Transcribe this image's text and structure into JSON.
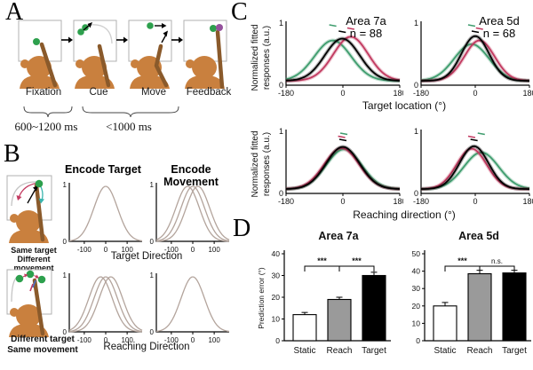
{
  "panels": {
    "A": {
      "label": "A",
      "stages": [
        "Fixation",
        "Cue",
        "Move",
        "Feedback"
      ],
      "timings": [
        "600~1200 ms",
        "<1000 ms"
      ]
    },
    "B": {
      "label": "B",
      "conditions": [
        {
          "lines": [
            "Same target",
            "Different",
            "movement"
          ]
        },
        {
          "lines": [
            "Different target",
            "Same movement"
          ]
        }
      ]
    },
    "C": {
      "label": "C"
    },
    "D": {
      "label": "D"
    }
  },
  "colors": {
    "monkey_body": "#c9803e",
    "monkey_arm": "#8a5a2b",
    "target_green": "#2da04d",
    "feedback_purple": "#94519c",
    "curve_green": "#3f9d6e",
    "curve_red": "#c23a60",
    "curve_black": "#000000",
    "bar_white": "#ffffff",
    "bar_gray": "#9a9a9a",
    "bar_black": "#000000"
  },
  "chart_data": [
    {
      "id": "panelB_encoding_models",
      "type": "line",
      "col_titles": [
        "Encode Target",
        "Encode Movement"
      ],
      "xlabels": [
        "Target Direction",
        "Reaching Direction"
      ],
      "x": {
        "min": -170,
        "max": 170,
        "ticks": [
          -100,
          0,
          100
        ]
      },
      "y": {
        "ticks": [
          0,
          1
        ]
      },
      "tick_font": 8,
      "curve_color": "#b3a49c",
      "halo": false,
      "peak_markers": false,
      "baseline": 0,
      "subplots": [
        {
          "slot": "b-plot-0",
          "row_xlabel": "Target Direction",
          "col": "Encode Target",
          "curves": [
            {
              "mu": 0,
              "peak": 0.97,
              "sigma": 55
            }
          ]
        },
        {
          "slot": "b-plot-1",
          "row_xlabel": "Target Direction",
          "col": "Encode Movement",
          "curves": [
            {
              "mu": -24,
              "peak": 0.97,
              "sigma": 55
            },
            {
              "mu": 0,
              "peak": 0.97,
              "sigma": 55
            },
            {
              "mu": 24,
              "peak": 0.97,
              "sigma": 55
            }
          ]
        },
        {
          "slot": "b-plot-2",
          "row_xlabel": "Reaching Direction",
          "col": "Encode Target",
          "curves": [
            {
              "mu": -24,
              "peak": 0.97,
              "sigma": 55
            },
            {
              "mu": 0,
              "peak": 0.97,
              "sigma": 55
            },
            {
              "mu": 24,
              "peak": 0.97,
              "sigma": 55
            }
          ]
        },
        {
          "slot": "b-plot-3",
          "row_xlabel": "Reaching Direction",
          "col": "Encode Movement",
          "curves": [
            {
              "mu": 0,
              "peak": 0.97,
              "sigma": 55
            }
          ]
        }
      ]
    },
    {
      "id": "panelC_population_tuning",
      "type": "line",
      "ylabel": "Normalized fitted responses (a.u.)",
      "ylabel_lines": [
        "Normalized fitted",
        "responses (a.u.)"
      ],
      "xlabels": [
        "Target location (°)",
        "Reaching direction (°)"
      ],
      "x": {
        "min": -180,
        "max": 180,
        "ticks": [
          -180,
          0,
          180
        ]
      },
      "y": {
        "ticks": [
          0,
          1
        ]
      },
      "tick_font": 9,
      "halo": true,
      "peak_markers": true,
      "baseline": 0.07,
      "subplots": [
        {
          "slot": "c-plot-0",
          "area_title": "Area 7a",
          "n_label": "n = 88",
          "row_xlabel": "Target location (°)",
          "curves": [
            {
              "name": "green",
              "color": "#3f9d6e",
              "mu": -32,
              "peak": 0.72,
              "sigma": 58
            },
            {
              "name": "red",
              "color": "#c23a60",
              "mu": 25,
              "peak": 0.78,
              "sigma": 55
            },
            {
              "name": "black",
              "color": "#000000",
              "mu": -2,
              "peak": 0.75,
              "sigma": 55
            }
          ]
        },
        {
          "slot": "c-plot-1",
          "area_title": "Area 5d",
          "n_label": "n = 68",
          "row_xlabel": "Target location (°)",
          "curves": [
            {
              "name": "green",
              "color": "#3f9d6e",
              "mu": -12,
              "peak": 0.66,
              "sigma": 58
            },
            {
              "name": "red",
              "color": "#c23a60",
              "mu": 14,
              "peak": 0.72,
              "sigma": 50
            },
            {
              "name": "black",
              "color": "#000000",
              "mu": 0,
              "peak": 0.79,
              "sigma": 46
            }
          ]
        },
        {
          "slot": "c-plot-2",
          "row_xlabel": "Reaching direction (°)",
          "curves": [
            {
              "name": "green",
              "color": "#3f9d6e",
              "mu": 3,
              "peak": 0.71,
              "sigma": 56
            },
            {
              "name": "red",
              "color": "#c23a60",
              "mu": -4,
              "peak": 0.73,
              "sigma": 55
            },
            {
              "name": "black",
              "color": "#000000",
              "mu": 0,
              "peak": 0.75,
              "sigma": 53
            }
          ]
        },
        {
          "slot": "c-plot-3",
          "row_xlabel": "Reaching direction (°)",
          "curves": [
            {
              "name": "green",
              "color": "#3f9d6e",
              "mu": 20,
              "peak": 0.66,
              "sigma": 58
            },
            {
              "name": "red",
              "color": "#c23a60",
              "mu": -12,
              "peak": 0.72,
              "sigma": 50
            },
            {
              "name": "black",
              "color": "#000000",
              "mu": -4,
              "peak": 0.76,
              "sigma": 48
            }
          ]
        }
      ]
    },
    {
      "id": "panelD_prediction_error",
      "type": "bar",
      "ylabel": "Prediction error (°)",
      "categories": [
        "Static",
        "Reach",
        "Target"
      ],
      "charts": [
        {
          "slot": "d-chart-0",
          "title": "Area 7a",
          "ymax": 40,
          "yticks": [
            0,
            10,
            20,
            30,
            40
          ],
          "values": [
            12,
            19,
            30
          ],
          "errors": [
            1,
            1,
            1.5
          ],
          "colors": [
            "#ffffff",
            "#9a9a9a",
            "#000000"
          ],
          "show_ylabel": true,
          "sig": [
            {
              "a": 0,
              "b": 1,
              "label": "***"
            },
            {
              "a": 1,
              "b": 2,
              "label": "***"
            }
          ]
        },
        {
          "slot": "d-chart-1",
          "title": "Area 5d",
          "ymax": 50,
          "yticks": [
            0,
            10,
            20,
            30,
            40,
            50
          ],
          "values": [
            20,
            38.5,
            39
          ],
          "errors": [
            2,
            2,
            1.5
          ],
          "colors": [
            "#ffffff",
            "#9a9a9a",
            "#000000"
          ],
          "show_ylabel": false,
          "sig": [
            {
              "a": 0,
              "b": 1,
              "label": "***"
            },
            {
              "a": 1,
              "b": 2,
              "label": "n.s."
            }
          ]
        }
      ]
    }
  ]
}
